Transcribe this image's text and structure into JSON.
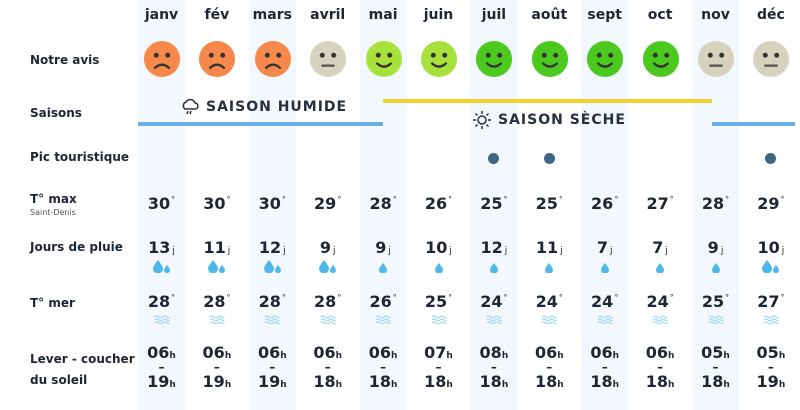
{
  "row_labels": {
    "avis": "Notre avis",
    "saisons": "Saisons",
    "pic": "Pic touristique",
    "tmax": "T° max",
    "tmax_sub": "Saint-Denis",
    "pluie": "Jours de pluie",
    "mer": "T° mer",
    "lever1": "Lever - coucher",
    "lever2": "du soleil"
  },
  "seasons": {
    "wet": {
      "label": "SAISON HUMIDE",
      "icon": "rain-cloud-icon",
      "color": "#6aaee8"
    },
    "dry": {
      "label": "SAISON SÈCHE",
      "icon": "sun-icon",
      "color": "#f2d22e"
    }
  },
  "units": {
    "degree": "°",
    "days": "j",
    "hour": "h",
    "dash": "–"
  },
  "mood_colors": {
    "bad": "#f5884a",
    "neutral": "#d5d2bd",
    "good": "#a8e03c",
    "great": "#4cc91e"
  },
  "months": [
    {
      "name": "janv",
      "mood": "bad",
      "peak": false,
      "tmax": "30",
      "rain": "13",
      "drops": 2,
      "sea": "28",
      "rise": "06",
      "set": "19"
    },
    {
      "name": "fév",
      "mood": "bad",
      "peak": false,
      "tmax": "30",
      "rain": "11",
      "drops": 2,
      "sea": "28",
      "rise": "06",
      "set": "19"
    },
    {
      "name": "mars",
      "mood": "bad",
      "peak": false,
      "tmax": "30",
      "rain": "12",
      "drops": 2,
      "sea": "28",
      "rise": "06",
      "set": "19"
    },
    {
      "name": "avril",
      "mood": "neutral",
      "peak": false,
      "tmax": "29",
      "rain": "9",
      "drops": 2,
      "sea": "28",
      "rise": "06",
      "set": "18"
    },
    {
      "name": "mai",
      "mood": "good",
      "peak": false,
      "tmax": "28",
      "rain": "9",
      "drops": 1,
      "sea": "26",
      "rise": "06",
      "set": "18"
    },
    {
      "name": "juin",
      "mood": "good",
      "peak": false,
      "tmax": "26",
      "rain": "10",
      "drops": 1,
      "sea": "25",
      "rise": "07",
      "set": "18"
    },
    {
      "name": "juil",
      "mood": "great",
      "peak": true,
      "tmax": "25",
      "rain": "12",
      "drops": 1,
      "sea": "24",
      "rise": "08",
      "set": "18"
    },
    {
      "name": "août",
      "mood": "great",
      "peak": true,
      "tmax": "25",
      "rain": "11",
      "drops": 1,
      "sea": "24",
      "rise": "06",
      "set": "18"
    },
    {
      "name": "sept",
      "mood": "great",
      "peak": false,
      "tmax": "26",
      "rain": "7",
      "drops": 1,
      "sea": "24",
      "rise": "06",
      "set": "18"
    },
    {
      "name": "oct",
      "mood": "great",
      "peak": false,
      "tmax": "27",
      "rain": "7",
      "drops": 1,
      "sea": "24",
      "rise": "06",
      "set": "18"
    },
    {
      "name": "nov",
      "mood": "neutral",
      "peak": false,
      "tmax": "28",
      "rain": "9",
      "drops": 1,
      "sea": "25",
      "rise": "05",
      "set": "18"
    },
    {
      "name": "déc",
      "mood": "neutral",
      "peak": true,
      "tmax": "29",
      "rain": "10",
      "drops": 2,
      "sea": "27",
      "rise": "05",
      "set": "19"
    }
  ]
}
